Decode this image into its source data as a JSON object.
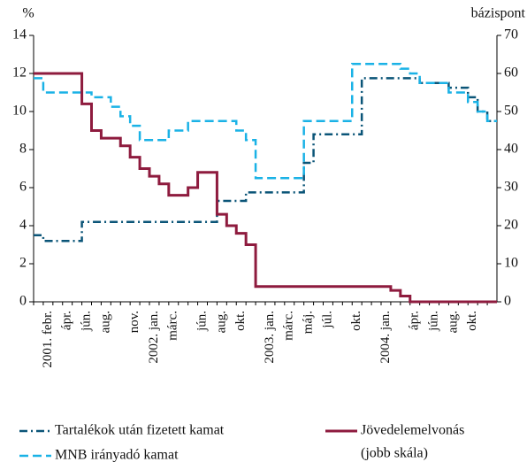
{
  "chart_data": {
    "type": "step",
    "ylabel": "%",
    "y2label": "bázispont",
    "categories": [
      null,
      "2001. febr.",
      null,
      "ápr.",
      null,
      "jún.",
      null,
      "aug.",
      null,
      null,
      "nov.",
      null,
      "2002. jan.",
      null,
      "márc.",
      null,
      null,
      "jún.",
      null,
      "aug.",
      null,
      "okt.",
      null,
      null,
      "2003. jan.",
      null,
      "márc.",
      null,
      "máj.",
      null,
      "júl.",
      null,
      null,
      "okt.",
      null,
      null,
      "2004. jan.",
      null,
      null,
      "ápr.",
      null,
      "jún.",
      null,
      "aug.",
      null,
      "okt.",
      null,
      null
    ],
    "ylim": [
      0,
      14
    ],
    "yticks": [
      0,
      2,
      4,
      6,
      8,
      10,
      12,
      14
    ],
    "y2lim": [
      0,
      70
    ],
    "y2ticks": [
      0,
      10,
      20,
      30,
      40,
      50,
      60,
      70
    ],
    "series": [
      {
        "name": "Tartalékok után fizetett kamat",
        "color": "#0b5578",
        "dash": "dashdot",
        "values": [
          3.5,
          3.2,
          3.2,
          3.2,
          3.2,
          4.2,
          4.2,
          4.2,
          4.2,
          4.2,
          4.2,
          4.2,
          4.2,
          4.2,
          4.2,
          4.2,
          4.2,
          4.2,
          4.2,
          5.3,
          5.3,
          5.3,
          5.75,
          5.75,
          5.75,
          5.75,
          5.75,
          5.75,
          7.3,
          8.8,
          8.8,
          8.8,
          8.8,
          8.8,
          11.75,
          11.75,
          11.75,
          11.75,
          11.75,
          11.75,
          11.5,
          11.5,
          11.5,
          11.25,
          11.25,
          10.75,
          10,
          9.5
        ]
      },
      {
        "name": "MNB irányadó kamat",
        "color": "#1ab2e6",
        "dash": "dashed",
        "values": [
          11.75,
          11,
          11,
          11,
          11,
          11,
          10.75,
          10.75,
          10.25,
          9.75,
          9.25,
          8.5,
          8.5,
          8.5,
          9,
          9,
          9.5,
          9.5,
          9.5,
          9.5,
          9.5,
          9,
          8.5,
          6.5,
          6.5,
          6.5,
          6.5,
          6.5,
          9.5,
          9.5,
          9.5,
          9.5,
          9.5,
          12.5,
          12.5,
          12.5,
          12.5,
          12.5,
          12.25,
          12,
          11.5,
          11.5,
          11.5,
          11,
          11,
          10.5,
          10,
          9.5
        ]
      },
      {
        "name": "Jövedelemelvonás",
        "note": "(jobb skála)",
        "color": "#8e1b3e",
        "dash": "solid",
        "axis": "y2",
        "values": [
          60,
          60,
          60,
          60,
          60,
          52,
          45,
          43,
          43,
          41,
          38,
          35,
          33,
          31,
          28,
          28,
          30,
          34,
          34,
          23,
          20,
          18,
          15,
          4,
          4,
          4,
          4,
          4,
          4,
          4,
          4,
          4,
          4,
          4,
          4,
          4,
          4,
          3,
          1.5,
          0,
          0,
          0,
          0,
          0,
          0,
          0,
          0,
          0
        ]
      }
    ]
  }
}
